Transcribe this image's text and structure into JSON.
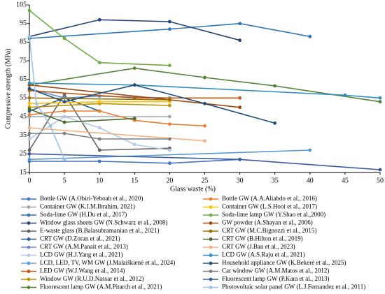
{
  "chart_data": {
    "type": "line",
    "x_label": "Glass waste (%)",
    "y_label": "Compressive strength (MPa)",
    "xlim": [
      0,
      50
    ],
    "xticks": [
      0,
      5,
      10,
      15,
      20,
      25,
      30,
      35,
      40,
      45,
      50
    ],
    "ylim": [
      15,
      105
    ],
    "yticks": [
      15,
      25,
      35,
      45,
      55,
      65,
      75,
      85,
      95,
      105
    ],
    "grid": false,
    "legend": "bottom",
    "series": [
      {
        "name": "Bottle GW (A.Obiri-Yeboah et al., 2020)",
        "color": "#4472c4",
        "x": [
          0,
          10,
          20,
          30
        ],
        "values": [
          21,
          21,
          20,
          22
        ]
      },
      {
        "name": "Container GW (K.I.M.Ibrahim, 2021)",
        "color": "#a5a5a5",
        "x": [
          0,
          5,
          20
        ],
        "values": [
          45,
          45,
          45
        ]
      },
      {
        "name": "Soda-lime GW (H.Du et al., 2017)",
        "color": "#2e75b6",
        "x": [
          0,
          20,
          30,
          40
        ],
        "values": [
          87,
          92,
          95,
          88
        ]
      },
      {
        "name": "Window glass sheets GW (N.Schwarz et al., 2008)",
        "color": "#264478",
        "x": [
          0,
          10,
          20,
          30
        ],
        "values": [
          88,
          97,
          96,
          86
        ]
      },
      {
        "name": "E-waste glass (B.Balasubramanian et al., 2021)",
        "color": "#636363",
        "x": [
          0,
          5,
          10,
          20
        ],
        "values": [
          27,
          57,
          27,
          28
        ]
      },
      {
        "name": "CRT GW (D.Zoran et al., 2021)",
        "color": "#255e91",
        "x": [
          0,
          5,
          10
        ],
        "values": [
          48,
          55,
          48
        ]
      },
      {
        "name": "CRT GW (A.M.Panait et al., 2013)",
        "color": "#698ed0",
        "x": [
          0,
          5,
          10,
          20
        ],
        "values": [
          60,
          55,
          56,
          55
        ]
      },
      {
        "name": "LCD GW (H.J.Yang et al., 2021)",
        "color": "#b4c7e7",
        "x": [
          0,
          5,
          10,
          15,
          20
        ],
        "values": [
          33,
          45,
          39,
          30,
          27
        ]
      },
      {
        "name": "LCD, LED, TV, WM GW (J.Malaiškienė et al., 2024)",
        "color": "#5b9bd5",
        "x": [
          0,
          40
        ],
        "values": [
          22,
          27
        ]
      },
      {
        "name": "LED GW (W.J.Wang et al., 2014)",
        "color": "#c55a11",
        "x": [
          0,
          15,
          30
        ],
        "values": [
          59,
          55,
          55
        ]
      },
      {
        "name": "Window GW (R.U.D.Nassar et al., 2012)",
        "color": "#bf9000",
        "x": [
          0,
          10,
          20
        ],
        "values": [
          50,
          52,
          51
        ]
      },
      {
        "name": "Fluorescent lamp GW (A.M.Pitarch et al., 2021)",
        "color": "#548235",
        "x": [
          0,
          15,
          25,
          35,
          50
        ],
        "values": [
          62,
          71,
          66,
          61.5,
          53
        ]
      },
      {
        "name": "Bottle GW (A.A.Aliabdo et al., 2016)",
        "color": "#ed7d31",
        "x": [
          0,
          5,
          10,
          15,
          20,
          25
        ],
        "values": [
          46,
          48,
          48,
          43,
          41,
          40
        ]
      },
      {
        "name": "Container GW (L.S.Hooi et al., 2017)",
        "color": "#ffc000",
        "x": [
          0,
          10,
          20
        ],
        "values": [
          52,
          53,
          53
        ]
      },
      {
        "name": "Soda-lime lamp GW (Y.Shao et al.,2000)",
        "color": "#70ad47",
        "x": [
          0,
          5,
          10,
          20
        ],
        "values": [
          102,
          87,
          74,
          72.5
        ]
      },
      {
        "name": "GW powder (A.Shayan et al., 2006)",
        "color": "#9e480e",
        "x": [
          0,
          30
        ],
        "values": [
          62,
          50
        ]
      },
      {
        "name": "CRT GW (M.C.Bignozzi et al., 2015)",
        "color": "#997300",
        "x": [
          0,
          20
        ],
        "values": [
          55,
          54
        ]
      },
      {
        "name": "CRT GW (B.Hilton et al., 2019)",
        "color": "#43682b",
        "x": [
          0,
          5,
          15
        ],
        "values": [
          49,
          42,
          44
        ]
      },
      {
        "name": "CRT GW (J.Ban et al., 2023)",
        "color": "#f4b183",
        "x": [
          0,
          25
        ],
        "values": [
          39,
          32
        ]
      },
      {
        "name": "LCD GW (A.S.Raju et al., 2021)",
        "color": "#2f8fbf",
        "x": [
          0,
          15,
          45,
          50
        ],
        "values": [
          63,
          62,
          56.5,
          55
        ]
      },
      {
        "name": "Household appliance GW (K.Bekerė et al., 2025)",
        "color": "#1f4e79",
        "x": [
          0,
          5,
          15,
          25,
          35
        ],
        "values": [
          60,
          53,
          62,
          52,
          41.5
        ]
      },
      {
        "name": "Car window GW (A.M.Matos et al., 2012)",
        "color": "#7f7f7f",
        "x": [
          0,
          5,
          10,
          20
        ],
        "values": [
          36,
          36,
          33,
          33
        ]
      },
      {
        "name": "Fluorescent lamp GW (P.Kara et al., 2013)",
        "color": "#3a5ba0",
        "x": [
          0,
          30,
          50
        ],
        "values": [
          25,
          22,
          16.5
        ]
      },
      {
        "name": "Photovoltaic solar panel GW (L.J.Fernandez et al., 2011)",
        "color": "#9dc3e6",
        "x": [
          0,
          1,
          3,
          5
        ],
        "values": [
          88,
          52,
          40,
          22
        ]
      }
    ]
  }
}
